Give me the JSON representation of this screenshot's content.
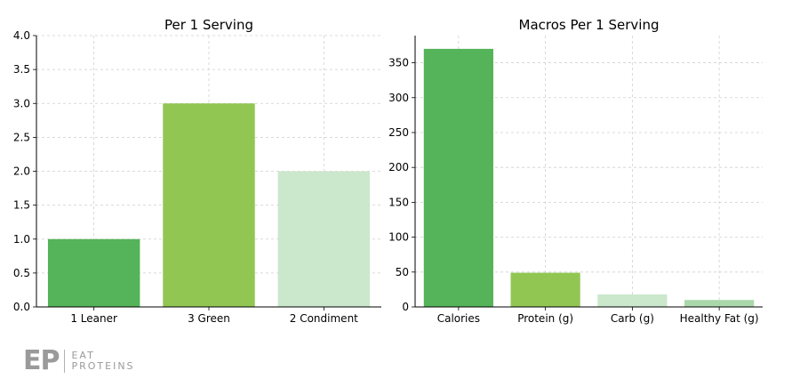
{
  "chart_data": [
    {
      "type": "bar",
      "title": "Per 1 Serving",
      "categories": [
        "1 Leaner",
        "3 Green",
        "2 Condiment"
      ],
      "values": [
        1,
        3,
        2
      ],
      "colors": [
        "#4caf50",
        "#8bc34a",
        "#c8e6c9"
      ],
      "ylim": [
        0,
        4.0
      ],
      "yticks": [
        "0.0",
        "0.5",
        "1.0",
        "1.5",
        "2.0",
        "2.5",
        "3.0",
        "3.5",
        "4.0"
      ],
      "grid": true
    },
    {
      "type": "bar",
      "title": "Macros Per 1 Serving",
      "categories": [
        "Calories",
        "Protein (g)",
        "Carb (g)",
        "Healthy Fat (g)"
      ],
      "values": [
        370,
        49,
        18,
        10
      ],
      "colors": [
        "#4caf50",
        "#8bc34a",
        "#c8e6c9",
        "#a5d6a7"
      ],
      "ylim": [
        0,
        389
      ],
      "yticks": [
        "0",
        "50",
        "100",
        "150",
        "200",
        "250",
        "300",
        "350"
      ],
      "grid": true
    }
  ],
  "logo": {
    "mark": "EP",
    "line1": "EAT",
    "line2": "PROTEINS"
  }
}
